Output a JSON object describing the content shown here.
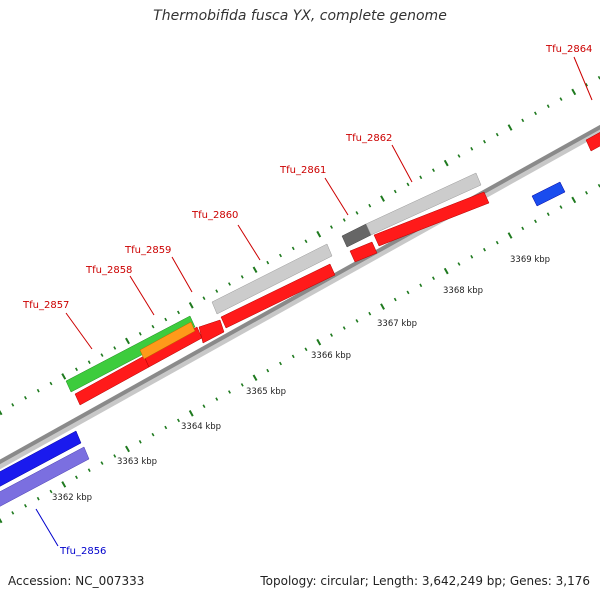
{
  "title": "Thermobifida fusca YX, complete genome",
  "footer": {
    "accession": "Accession: NC_007333",
    "summary": "Topology: circular; Length: 3,642,249 bp; Genes: 3,176"
  },
  "colors": {
    "backbone": "#8a8a8a",
    "ticks": "#1f7a1f",
    "forward_label": "#cc0000",
    "reverse_label": "#0000cc"
  },
  "scale_labels": [
    "3362 kbp",
    "3363 kbp",
    "3364 kbp",
    "3365 kbp",
    "3366 kbp",
    "3367 kbp",
    "3368 kbp",
    "3369 kbp"
  ],
  "gene_labels": [
    {
      "id": "Tfu_2857",
      "strand": "forward"
    },
    {
      "id": "Tfu_2858",
      "strand": "forward"
    },
    {
      "id": "Tfu_2859",
      "strand": "forward"
    },
    {
      "id": "Tfu_2860",
      "strand": "forward"
    },
    {
      "id": "Tfu_2861",
      "strand": "forward"
    },
    {
      "id": "Tfu_2862",
      "strand": "forward"
    },
    {
      "id": "Tfu_2864",
      "strand": "forward"
    },
    {
      "id": "Tfu_2856",
      "strand": "reverse"
    }
  ]
}
